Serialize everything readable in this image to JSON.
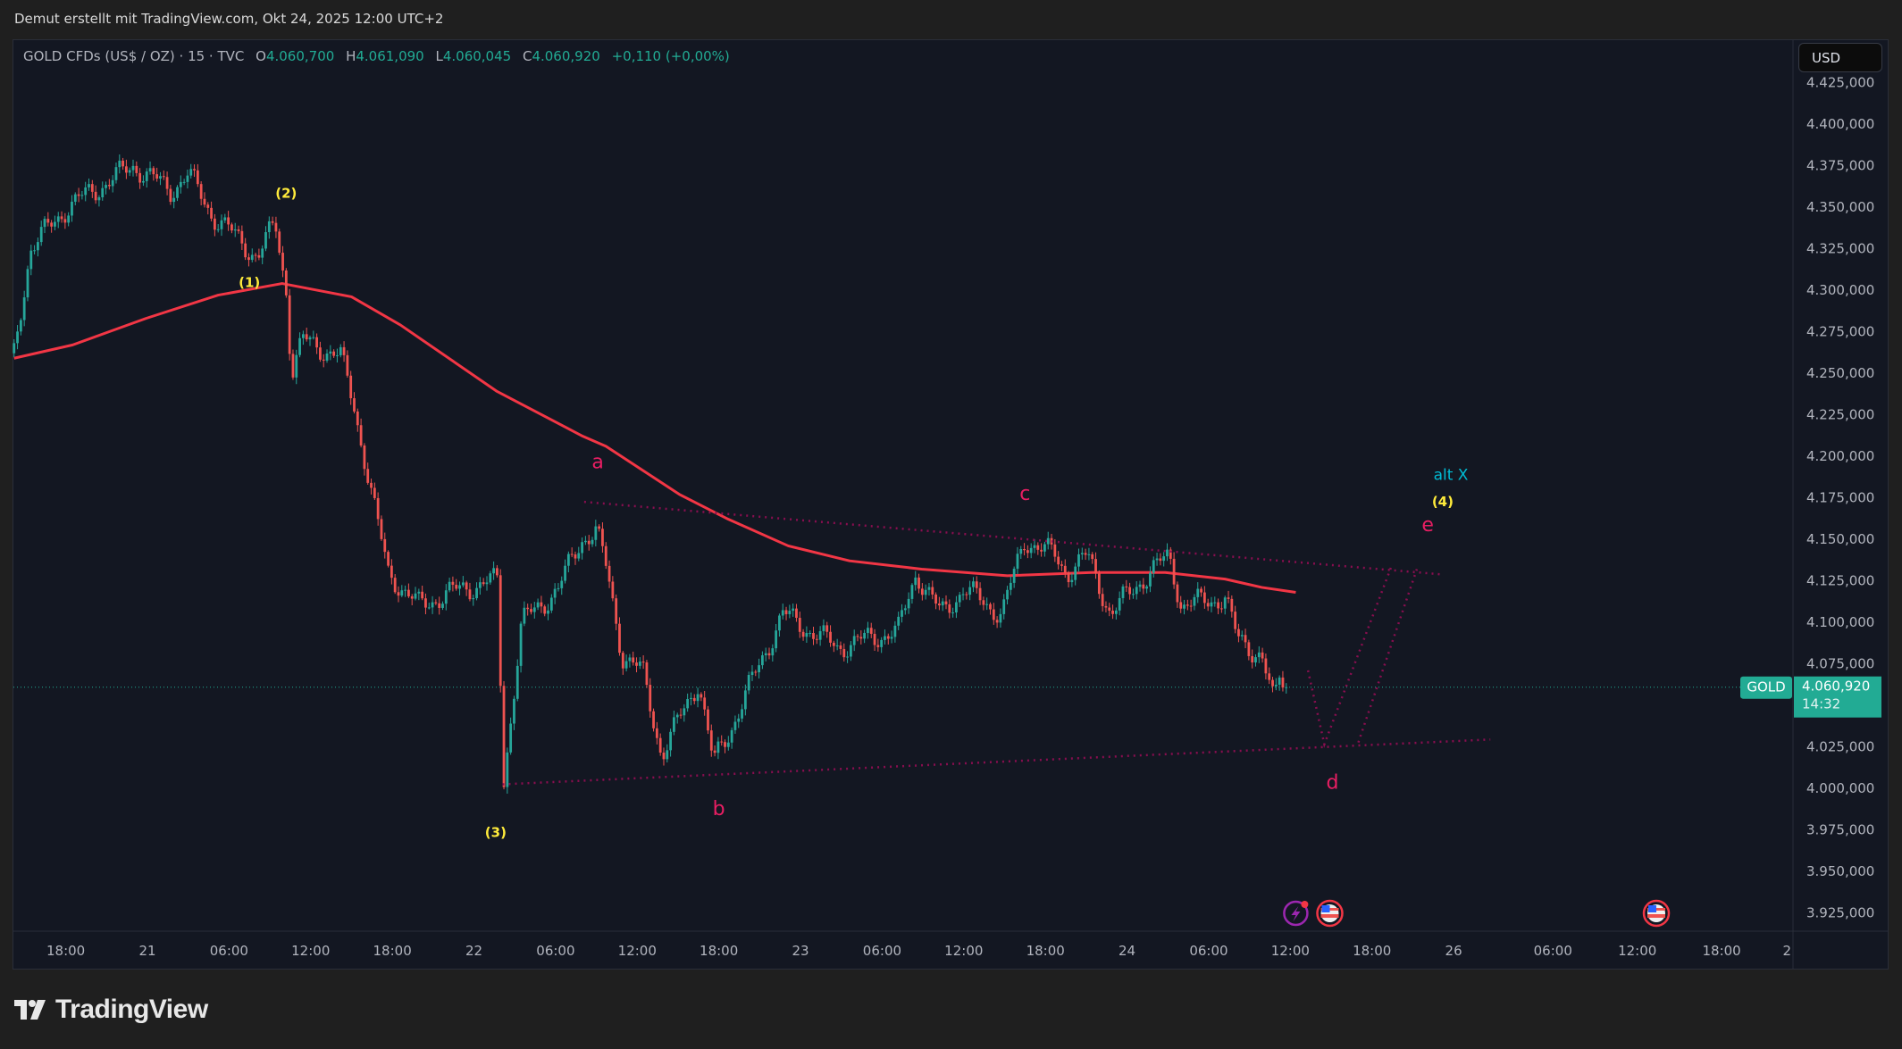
{
  "credit": "Demut erstellt mit TradingView.com, Okt 24, 2025 12:00 UTC+2",
  "legend": {
    "symbol": "GOLD CFDs (US$ / OZ) · 15 · TVC",
    "o_label": "O",
    "o_value": "4.060,700",
    "h_label": "H",
    "h_value": "4.061,090",
    "l_label": "L",
    "l_value": "4.060,045",
    "c_label": "C",
    "c_value": "4.060,920",
    "change": "+0,110 (+0,00%)"
  },
  "currency_button": "USD",
  "price_badge": {
    "symbol": "GOLD",
    "price": "4.060,920",
    "countdown": "14:32"
  },
  "logo_text": "TradingView",
  "colors": {
    "up": "#26a69a",
    "down": "#ef5350",
    "ma": "#f23645",
    "wave": "#e91e63",
    "trend": "#880e4f",
    "impulse": "#ffeb3b",
    "alt": "#00bcd4",
    "badge": "#22ab94"
  },
  "chart_data": {
    "type": "candlestick",
    "interval_minutes": 15,
    "time_unit": "hours since Oct 21 00:00",
    "ylim": [
      3910,
      4430
    ],
    "current_price": 4060.92,
    "price_ticks": [
      {
        "value": 4425,
        "label": "4.425,000"
      },
      {
        "value": 4400,
        "label": "4.400,000"
      },
      {
        "value": 4375,
        "label": "4.375,000"
      },
      {
        "value": 4350,
        "label": "4.350,000"
      },
      {
        "value": 4325,
        "label": "4.325,000"
      },
      {
        "value": 4300,
        "label": "4.300,000"
      },
      {
        "value": 4275,
        "label": "4.275,000"
      },
      {
        "value": 4250,
        "label": "4.250,000"
      },
      {
        "value": 4225,
        "label": "4.225,000"
      },
      {
        "value": 4200,
        "label": "4.200,000"
      },
      {
        "value": 4175,
        "label": "4.175,000"
      },
      {
        "value": 4150,
        "label": "4.150,000"
      },
      {
        "value": 4125,
        "label": "4.125,000"
      },
      {
        "value": 4100,
        "label": "4.100,000"
      },
      {
        "value": 4075,
        "label": "4.075,000"
      },
      {
        "value": 4025,
        "label": "4.025,000"
      },
      {
        "value": 4000,
        "label": "4.000,000"
      },
      {
        "value": 3975,
        "label": "3.975,000"
      },
      {
        "value": 3950,
        "label": "3.950,000"
      },
      {
        "value": 3925,
        "label": "3.925,000"
      }
    ],
    "time_ticks": [
      {
        "t": -6,
        "label": "18:00"
      },
      {
        "t": 0,
        "label": "21"
      },
      {
        "t": 6,
        "label": "06:00"
      },
      {
        "t": 12,
        "label": "12:00"
      },
      {
        "t": 18,
        "label": "18:00"
      },
      {
        "t": 24,
        "label": "22"
      },
      {
        "t": 30,
        "label": "06:00"
      },
      {
        "t": 36,
        "label": "12:00"
      },
      {
        "t": 42,
        "label": "18:00"
      },
      {
        "t": 48,
        "label": "23"
      },
      {
        "t": 54,
        "label": "06:00"
      },
      {
        "t": 60,
        "label": "12:00"
      },
      {
        "t": 66,
        "label": "18:00"
      },
      {
        "t": 72,
        "label": "24"
      },
      {
        "t": 78,
        "label": "06:00"
      },
      {
        "t": 84,
        "label": "12:00"
      },
      {
        "t": 90,
        "label": "18:00"
      },
      {
        "t": 96,
        "label": "26"
      },
      {
        "t": 103.3,
        "label": "06:00"
      },
      {
        "t": 109.5,
        "label": "12:00"
      },
      {
        "t": 115.7,
        "label": "18:00"
      },
      {
        "t": 120.5,
        "label": "2"
      }
    ],
    "price_path": [
      [
        -9.8,
        4262
      ],
      [
        -8.6,
        4325
      ],
      [
        -5.9,
        4350
      ],
      [
        -1,
        4375
      ],
      [
        1.7,
        4360
      ],
      [
        3,
        4370
      ],
      [
        4.8,
        4345
      ],
      [
        8.1,
        4320
      ],
      [
        9.4,
        4340
      ],
      [
        10.2,
        4300
      ],
      [
        10.6,
        4250
      ],
      [
        11.4,
        4270
      ],
      [
        14.2,
        4260
      ],
      [
        15.2,
        4230
      ],
      [
        16.9,
        4160
      ],
      [
        17.7,
        4130
      ],
      [
        19.9,
        4110
      ],
      [
        23,
        4120
      ],
      [
        25.7,
        4125
      ],
      [
        26.2,
        4005
      ],
      [
        27.5,
        4100
      ],
      [
        30.2,
        4120
      ],
      [
        31.9,
        4150
      ],
      [
        33,
        4155
      ],
      [
        33.8,
        4130
      ],
      [
        34.9,
        4080
      ],
      [
        36.4,
        4070
      ],
      [
        37.8,
        4020
      ],
      [
        40.5,
        4065
      ],
      [
        41.6,
        4015
      ],
      [
        43.1,
        4040
      ],
      [
        45,
        4075
      ],
      [
        46.7,
        4105
      ],
      [
        50.7,
        4085
      ],
      [
        55.2,
        4095
      ],
      [
        56.5,
        4130
      ],
      [
        58.3,
        4105
      ],
      [
        60,
        4120
      ],
      [
        62.8,
        4105
      ],
      [
        64.5,
        4150
      ],
      [
        66.7,
        4140
      ],
      [
        67.6,
        4130
      ],
      [
        69.1,
        4140
      ],
      [
        70.8,
        4105
      ],
      [
        73,
        4125
      ],
      [
        75.1,
        4140
      ],
      [
        76,
        4110
      ],
      [
        79.2,
        4115
      ],
      [
        80.1,
        4090
      ],
      [
        81.9,
        4080
      ],
      [
        82.8,
        4050
      ],
      [
        83.2,
        4068
      ],
      [
        83.75,
        4061
      ]
    ],
    "moving_average": [
      [
        -9.8,
        4259
      ],
      [
        -5.5,
        4267
      ],
      [
        -0.1,
        4283
      ],
      [
        5.2,
        4297
      ],
      [
        9.9,
        4304
      ],
      [
        15,
        4296
      ],
      [
        18.6,
        4279
      ],
      [
        25.7,
        4239
      ],
      [
        32,
        4212
      ],
      [
        33.7,
        4206
      ],
      [
        39.1,
        4177
      ],
      [
        42.7,
        4162
      ],
      [
        47.1,
        4146
      ],
      [
        51.6,
        4137
      ],
      [
        56.9,
        4132
      ],
      [
        63.2,
        4128
      ],
      [
        69.4,
        4130
      ],
      [
        74.8,
        4130
      ],
      [
        79.2,
        4126
      ],
      [
        81.9,
        4121
      ],
      [
        84.4,
        4118
      ]
    ],
    "trendlines": [
      {
        "name": "upper-trendline",
        "points": [
          [
            32.1,
            4172.5
          ],
          [
            95.3,
            4128.7
          ]
        ]
      },
      {
        "name": "lower-trendline",
        "points": [
          [
            26.1,
            4002.4
          ],
          [
            98.7,
            4029.4
          ]
        ]
      },
      {
        "name": "projection-d-e",
        "points": [
          [
            85.3,
            4071
          ],
          [
            86.5,
            4026.5
          ],
          [
            91.4,
            4133
          ]
        ]
      },
      {
        "name": "projection-alt",
        "points": [
          [
            89.0,
            4027.6
          ],
          [
            93.3,
            4132
          ]
        ]
      }
    ],
    "wave_labels": [
      {
        "text": "(1)",
        "t": 7.5,
        "p": 4305,
        "kind": "impulse"
      },
      {
        "text": "(2)",
        "t": 10.2,
        "p": 4359,
        "kind": "impulse"
      },
      {
        "text": "(3)",
        "t": 25.6,
        "p": 3974,
        "kind": "impulse"
      },
      {
        "text": "(4)",
        "t": 95.2,
        "p": 4173,
        "kind": "impulse"
      },
      {
        "text": "alt X",
        "t": 95.8,
        "p": 4189,
        "kind": "alt"
      },
      {
        "text": "a",
        "t": 33.1,
        "p": 4196,
        "kind": "wave"
      },
      {
        "text": "b",
        "t": 42.0,
        "p": 3987,
        "kind": "wave"
      },
      {
        "text": "c",
        "t": 64.5,
        "p": 4177,
        "kind": "wave"
      },
      {
        "text": "d",
        "t": 87.1,
        "p": 4003,
        "kind": "wave"
      },
      {
        "text": "e",
        "t": 94.1,
        "p": 4158,
        "kind": "wave"
      }
    ],
    "events": [
      {
        "t": 84.4,
        "icon": "lightning-icon"
      },
      {
        "t": 86.9,
        "icon": "us-flag-icon"
      },
      {
        "t": 110.9,
        "icon": "us-flag-icon"
      }
    ]
  }
}
